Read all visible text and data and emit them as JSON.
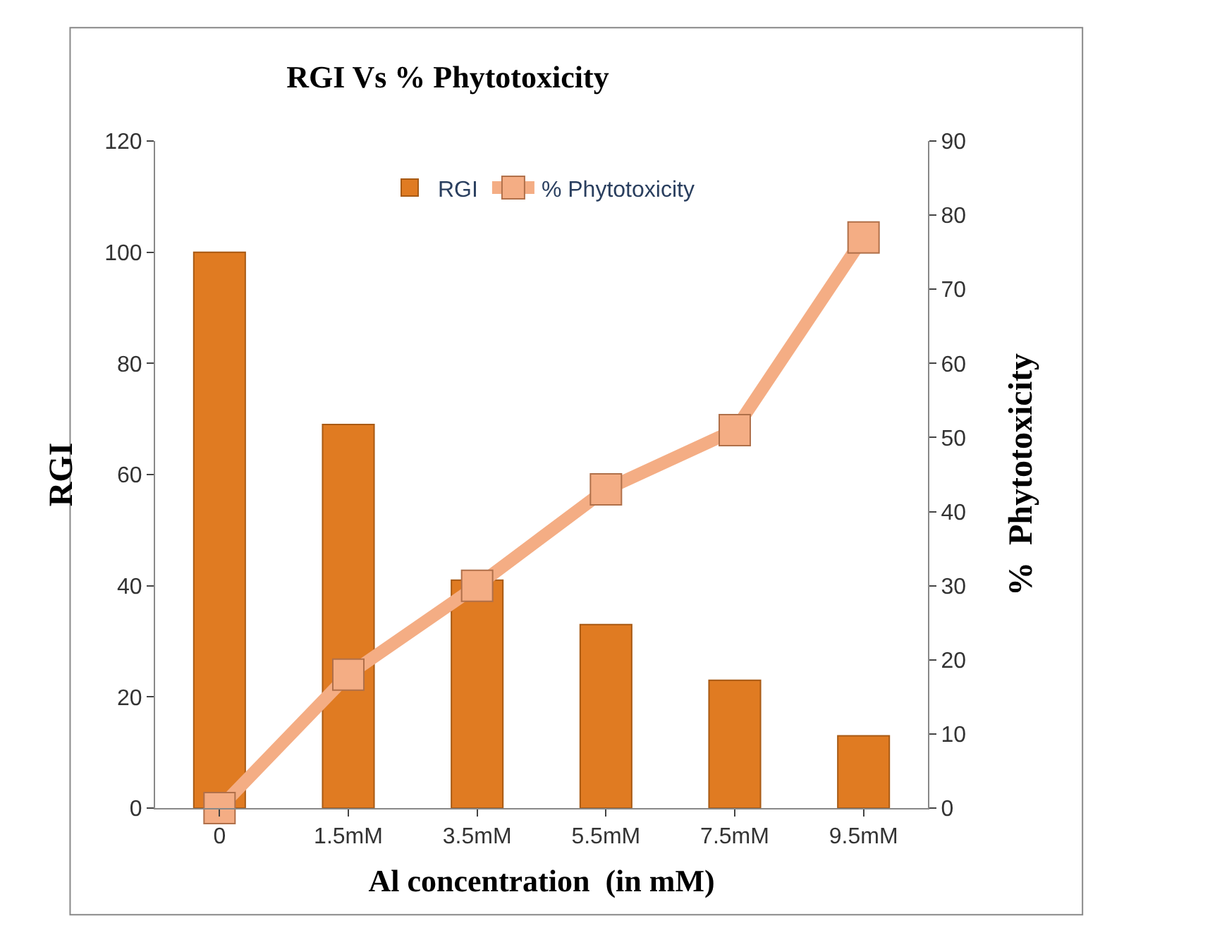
{
  "chart_data": {
    "type": "bar",
    "title": "RGI Vs % Phytotoxicity",
    "xlabel": "Al concentration  (in mM)",
    "ylabel": "RGI",
    "y2label": "%  Phytotoxicity",
    "categories": [
      "0",
      "1.5mM",
      "3.5mM",
      "5.5mM",
      "7.5mM",
      "9.5mM"
    ],
    "series": [
      {
        "name": "RGI",
        "color": "#e07b22",
        "values": [
          100,
          69,
          41,
          33,
          23,
          13
        ]
      },
      {
        "name": "% Phytotoxicity",
        "type": "line",
        "axis": "y2",
        "color": "#f4ad84",
        "marker": "square",
        "values": [
          0,
          18,
          30,
          43,
          51,
          77
        ]
      }
    ],
    "ylim": [
      0,
      120
    ],
    "yticks": [
      0,
      20,
      40,
      60,
      80,
      100,
      120
    ],
    "y2lim": [
      0,
      90
    ],
    "y2ticks": [
      0,
      10,
      20,
      30,
      40,
      50,
      60,
      70,
      80,
      90
    ],
    "grid": false,
    "legend": "top"
  }
}
